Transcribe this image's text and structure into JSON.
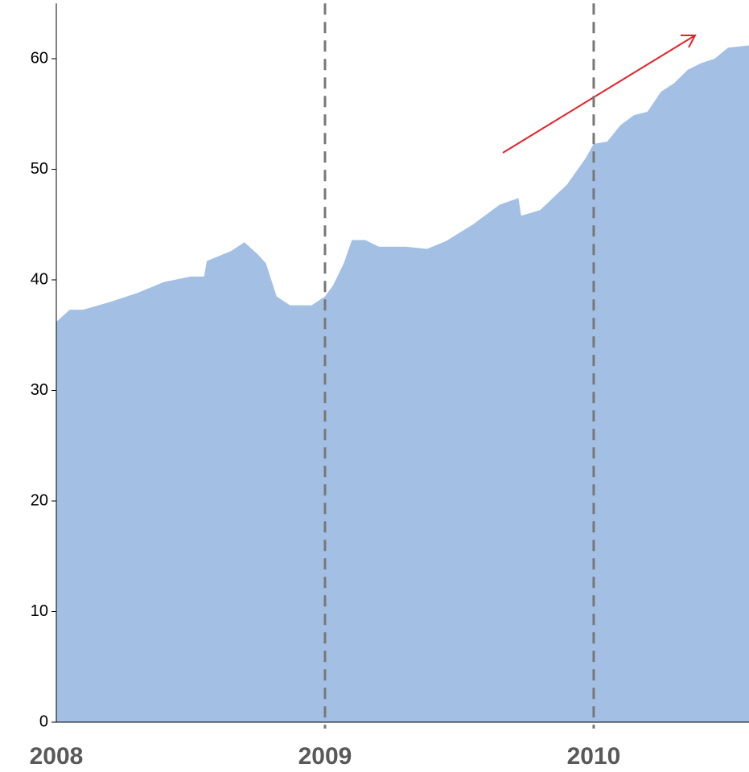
{
  "chart_data": {
    "type": "area",
    "x": [
      2008.0,
      2008.05,
      2008.1,
      2008.2,
      2008.3,
      2008.4,
      2008.5,
      2008.55,
      2008.56,
      2008.65,
      2008.7,
      2008.75,
      2008.78,
      2008.82,
      2008.87,
      2008.95,
      2009.0,
      2009.03,
      2009.07,
      2009.1,
      2009.15,
      2009.2,
      2009.3,
      2009.38,
      2009.45,
      2009.55,
      2009.65,
      2009.72,
      2009.73,
      2009.8,
      2009.9,
      2009.97,
      2010.0,
      2010.05,
      2010.1,
      2010.15,
      2010.2,
      2010.25,
      2010.3,
      2010.35,
      2010.4,
      2010.45,
      2010.5,
      2010.578
    ],
    "values": [
      36.2,
      37.3,
      37.3,
      38.0,
      38.8,
      39.8,
      40.3,
      40.3,
      41.7,
      42.6,
      43.4,
      42.3,
      41.5,
      38.5,
      37.7,
      37.7,
      38.5,
      39.5,
      41.5,
      43.6,
      43.6,
      43.0,
      43.0,
      42.8,
      43.5,
      45.0,
      46.8,
      47.4,
      45.8,
      46.3,
      48.6,
      51.0,
      52.3,
      52.5,
      54.0,
      54.9,
      55.2,
      57.0,
      57.8,
      59.0,
      59.6,
      60.0,
      61.0,
      61.2
    ],
    "color": "#a3c0e4",
    "xlim": [
      2008,
      2010.578
    ],
    "xticks": [
      2008,
      2009,
      2010
    ],
    "ylim": [
      0,
      65
    ],
    "yticks": [
      0,
      10,
      20,
      30,
      40,
      50,
      60
    ],
    "grid": true
  }
}
